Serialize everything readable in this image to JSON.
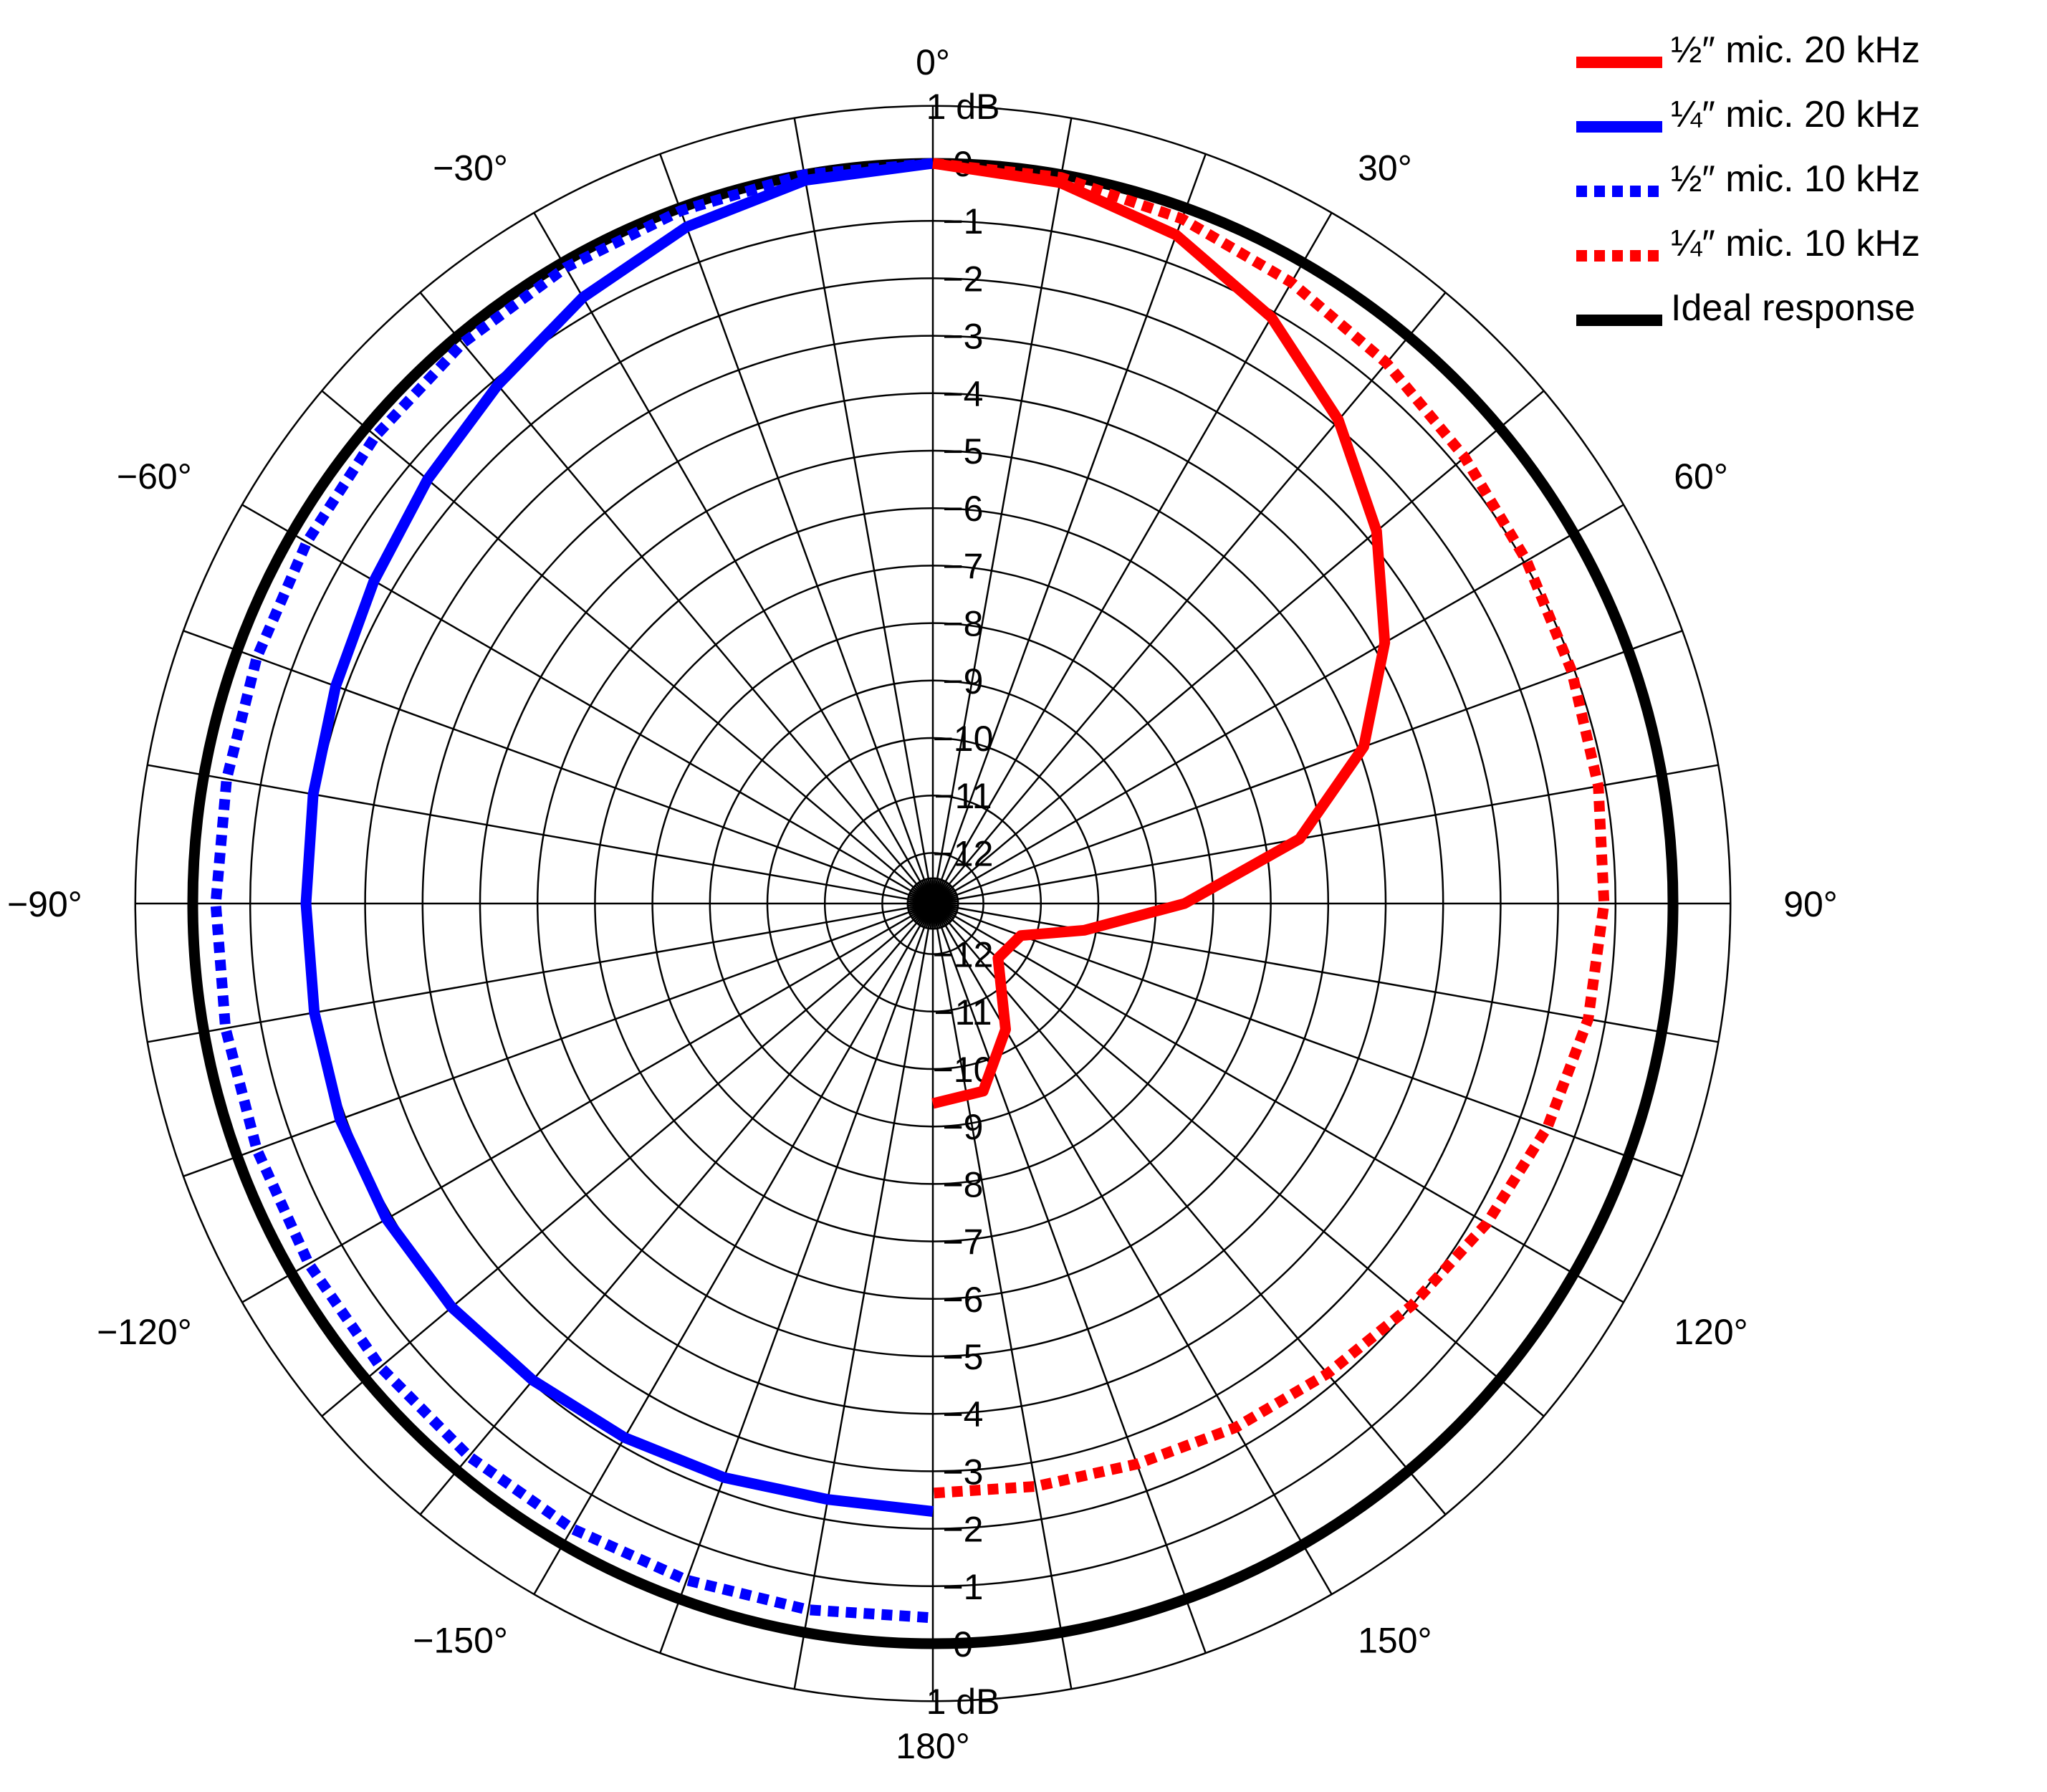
{
  "chart_data": {
    "type": "polar-line",
    "title": "",
    "radial_axis": {
      "unit": "dB",
      "range": [
        -13,
        1
      ],
      "top_scale_labels": [
        "1 dB",
        "0",
        "−1",
        "−2",
        "−3",
        "−4",
        "−5",
        "−6",
        "−7",
        "−8",
        "−9",
        "−10",
        "−11",
        "−12"
      ],
      "bottom_scale_labels": [
        "1 dB",
        "0",
        "−1",
        "−2",
        "−3",
        "−4",
        "−5",
        "−6",
        "−7",
        "−8",
        "−9",
        "−10",
        "−11",
        "−12"
      ]
    },
    "angular_axis": {
      "unit": "deg",
      "zero": "top",
      "direction": "clockwise",
      "spoke_step": 10,
      "labels": [
        {
          "angle": 0,
          "text": "0°"
        },
        {
          "angle": 30,
          "text": "30°"
        },
        {
          "angle": 60,
          "text": "60°"
        },
        {
          "angle": 90,
          "text": "90°"
        },
        {
          "angle": 120,
          "text": "120°"
        },
        {
          "angle": 150,
          "text": "150°"
        },
        {
          "angle": 180,
          "text": "180°"
        },
        {
          "angle": -150,
          "text": "−150°"
        },
        {
          "angle": -120,
          "text": "−120°"
        },
        {
          "angle": -90,
          "text": "−90°"
        },
        {
          "angle": -60,
          "text": "−60°"
        },
        {
          "angle": -30,
          "text": "−30°"
        }
      ]
    },
    "grid": true,
    "legend_position": "top-right",
    "series": [
      {
        "name": "½″ mic. 20 kHz",
        "color": "#ff0000",
        "style": "solid",
        "points": [
          {
            "angle": 0,
            "db": 0
          },
          {
            "angle": 10,
            "db": -0.14
          },
          {
            "angle": 20,
            "db": -0.5
          },
          {
            "angle": 30,
            "db": -1.1
          },
          {
            "angle": 40,
            "db": -1.9
          },
          {
            "angle": 50,
            "db": -2.8
          },
          {
            "angle": 60,
            "db": -3.8
          },
          {
            "angle": 70,
            "db": -4.9
          },
          {
            "angle": 80,
            "db": -6.4
          },
          {
            "angle": 90,
            "db": -8.5
          },
          {
            "angle": 100,
            "db": -10.2
          },
          {
            "angle": 110,
            "db": -11.25
          },
          {
            "angle": 130,
            "db": -11.4
          },
          {
            "angle": 150,
            "db": -10.35
          },
          {
            "angle": 165,
            "db": -9.5
          },
          {
            "angle": 180,
            "db": -9.4
          }
        ]
      },
      {
        "name": "¼″ mic. 20 kHz",
        "color": "#0000ff",
        "style": "solid",
        "points": [
          {
            "angle": 0,
            "db": 0
          },
          {
            "angle": -10,
            "db": -0.1
          },
          {
            "angle": -20,
            "db": -0.35
          },
          {
            "angle": -30,
            "db": -0.7
          },
          {
            "angle": -40,
            "db": -1.1
          },
          {
            "angle": -50,
            "db": -1.4
          },
          {
            "angle": -60,
            "db": -1.65
          },
          {
            "angle": -70,
            "db": -1.82
          },
          {
            "angle": -80,
            "db": -1.93
          },
          {
            "angle": -90,
            "db": -1.97
          },
          {
            "angle": -100,
            "db": -1.95
          },
          {
            "angle": -110,
            "db": -1.9
          },
          {
            "angle": -120,
            "db": -1.9
          },
          {
            "angle": -130,
            "db": -1.95
          },
          {
            "angle": -140,
            "db": -2.05
          },
          {
            "angle": -150,
            "db": -2.15
          },
          {
            "angle": -160,
            "db": -2.25
          },
          {
            "angle": -170,
            "db": -2.35
          },
          {
            "angle": -180,
            "db": -2.3
          }
        ]
      },
      {
        "name": "½″ mic. 10 kHz",
        "color": "#0000ff",
        "style": "dotted",
        "points": [
          {
            "angle": 0,
            "db": 0
          },
          {
            "angle": -10,
            "db": 0
          },
          {
            "angle": -20,
            "db": -0.05
          },
          {
            "angle": -30,
            "db": -0.1
          },
          {
            "angle": -40,
            "db": -0.15
          },
          {
            "angle": -50,
            "db": -0.22
          },
          {
            "angle": -60,
            "db": -0.3
          },
          {
            "angle": -70,
            "db": -0.36
          },
          {
            "angle": -80,
            "db": -0.4
          },
          {
            "angle": -90,
            "db": -0.4
          },
          {
            "angle": -100,
            "db": -0.38
          },
          {
            "angle": -110,
            "db": -0.36
          },
          {
            "angle": -120,
            "db": -0.34
          },
          {
            "angle": -130,
            "db": -0.33
          },
          {
            "angle": -140,
            "db": -0.32
          },
          {
            "angle": -150,
            "db": -0.32
          },
          {
            "angle": -160,
            "db": -0.35
          },
          {
            "angle": -170,
            "db": -0.4
          },
          {
            "angle": -180,
            "db": -0.45
          }
        ]
      },
      {
        "name": "¼″ mic. 10 kHz",
        "color": "#ff0000",
        "style": "dotted",
        "points": [
          {
            "angle": 0,
            "db": 0
          },
          {
            "angle": 10,
            "db": -0.05
          },
          {
            "angle": 20,
            "db": -0.2
          },
          {
            "angle": 30,
            "db": -0.4
          },
          {
            "angle": 40,
            "db": -0.6
          },
          {
            "angle": 50,
            "db": -0.8
          },
          {
            "angle": 60,
            "db": -0.95
          },
          {
            "angle": 70,
            "db": -1.05
          },
          {
            "angle": 80,
            "db": -1.12
          },
          {
            "angle": 90,
            "db": -1.2
          },
          {
            "angle": 100,
            "db": -1.3
          },
          {
            "angle": 110,
            "db": -1.5
          },
          {
            "angle": 120,
            "db": -1.75
          },
          {
            "angle": 130,
            "db": -2.0
          },
          {
            "angle": 140,
            "db": -2.2
          },
          {
            "angle": 150,
            "db": -2.35
          },
          {
            "angle": 160,
            "db": -2.5
          },
          {
            "angle": 170,
            "db": -2.58
          },
          {
            "angle": 180,
            "db": -2.62
          }
        ]
      },
      {
        "name": "Ideal response",
        "color": "#000000",
        "style": "solid",
        "constant_db": 0
      }
    ]
  }
}
